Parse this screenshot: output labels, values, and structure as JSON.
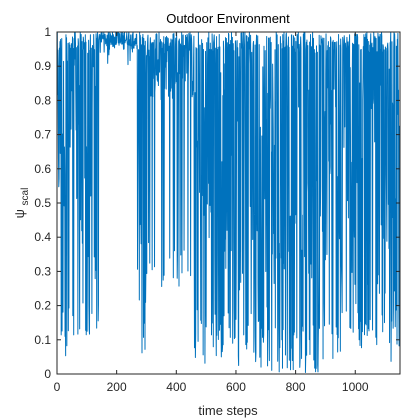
{
  "chart_data": {
    "type": "line",
    "title": "Outdoor Environment",
    "xlabel": "time steps",
    "ylabel_main": "ψ",
    "ylabel_sub": "scal",
    "xlim": [
      0,
      1150
    ],
    "ylim": [
      0,
      1
    ],
    "xticks": [
      0,
      200,
      400,
      600,
      800,
      1000
    ],
    "xtick_labels": [
      "0",
      "200",
      "400",
      "600",
      "800",
      "1000"
    ],
    "yticks": [
      0,
      0.1,
      0.2,
      0.3,
      0.4,
      0.5,
      0.6,
      0.7,
      0.8,
      0.9,
      1
    ],
    "ytick_labels": [
      "0",
      "0.1",
      "0.2",
      "0.3",
      "0.4",
      "0.5",
      "0.6",
      "0.7",
      "0.8",
      "0.9",
      "1"
    ],
    "grid": false,
    "series_color": "#0072BD",
    "series": [
      {
        "n_points": 1150,
        "segments": [
          {
            "x_start": 0,
            "x_end": 70,
            "high": 1.0,
            "low": 0.05,
            "median": 0.72
          },
          {
            "x_start": 70,
            "x_end": 140,
            "high": 1.0,
            "low": 0.06,
            "median": 0.55
          },
          {
            "x_start": 140,
            "x_end": 268,
            "high": 1.0,
            "low": 0.9,
            "median": 0.98
          },
          {
            "x_start": 268,
            "x_end": 300,
            "high": 1.0,
            "low": 0.0,
            "median": 0.6
          },
          {
            "x_start": 300,
            "x_end": 460,
            "high": 1.0,
            "low": 0.25,
            "median": 0.9
          },
          {
            "x_start": 460,
            "x_end": 700,
            "high": 1.0,
            "low": 0.02,
            "median": 0.55
          },
          {
            "x_start": 700,
            "x_end": 900,
            "high": 1.0,
            "low": 0.0,
            "median": 0.5
          },
          {
            "x_start": 900,
            "x_end": 1150,
            "high": 1.0,
            "low": 0.03,
            "median": 0.55
          }
        ]
      }
    ]
  }
}
